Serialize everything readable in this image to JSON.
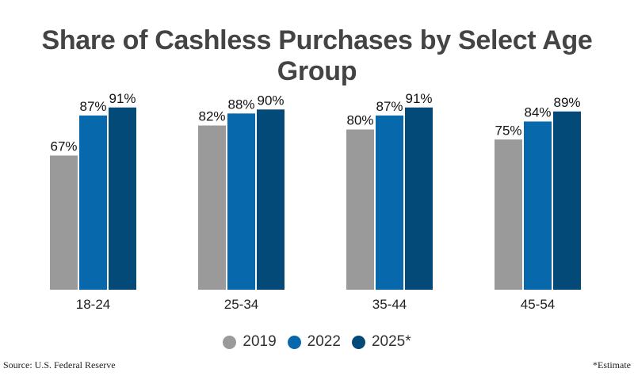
{
  "chart_data": {
    "type": "bar",
    "title": "Share of Cashless Purchases by Select Age Group",
    "categories": [
      "18-24",
      "25-34",
      "35-44",
      "45-54"
    ],
    "series": [
      {
        "name": "2019",
        "values": [
          67,
          82,
          80,
          75
        ],
        "color": "#9a9a9a"
      },
      {
        "name": "2022",
        "values": [
          87,
          88,
          87,
          84
        ],
        "color": "#0868ac"
      },
      {
        "name": "2025*",
        "values": [
          91,
          90,
          91,
          89
        ],
        "color": "#044a78"
      }
    ],
    "value_suffix": "%",
    "ylim": [
      0,
      100
    ],
    "grid": false,
    "legend_position": "bottom"
  },
  "footer": {
    "source": "Source: U.S. Federal Reserve",
    "note": "*Estimate"
  }
}
